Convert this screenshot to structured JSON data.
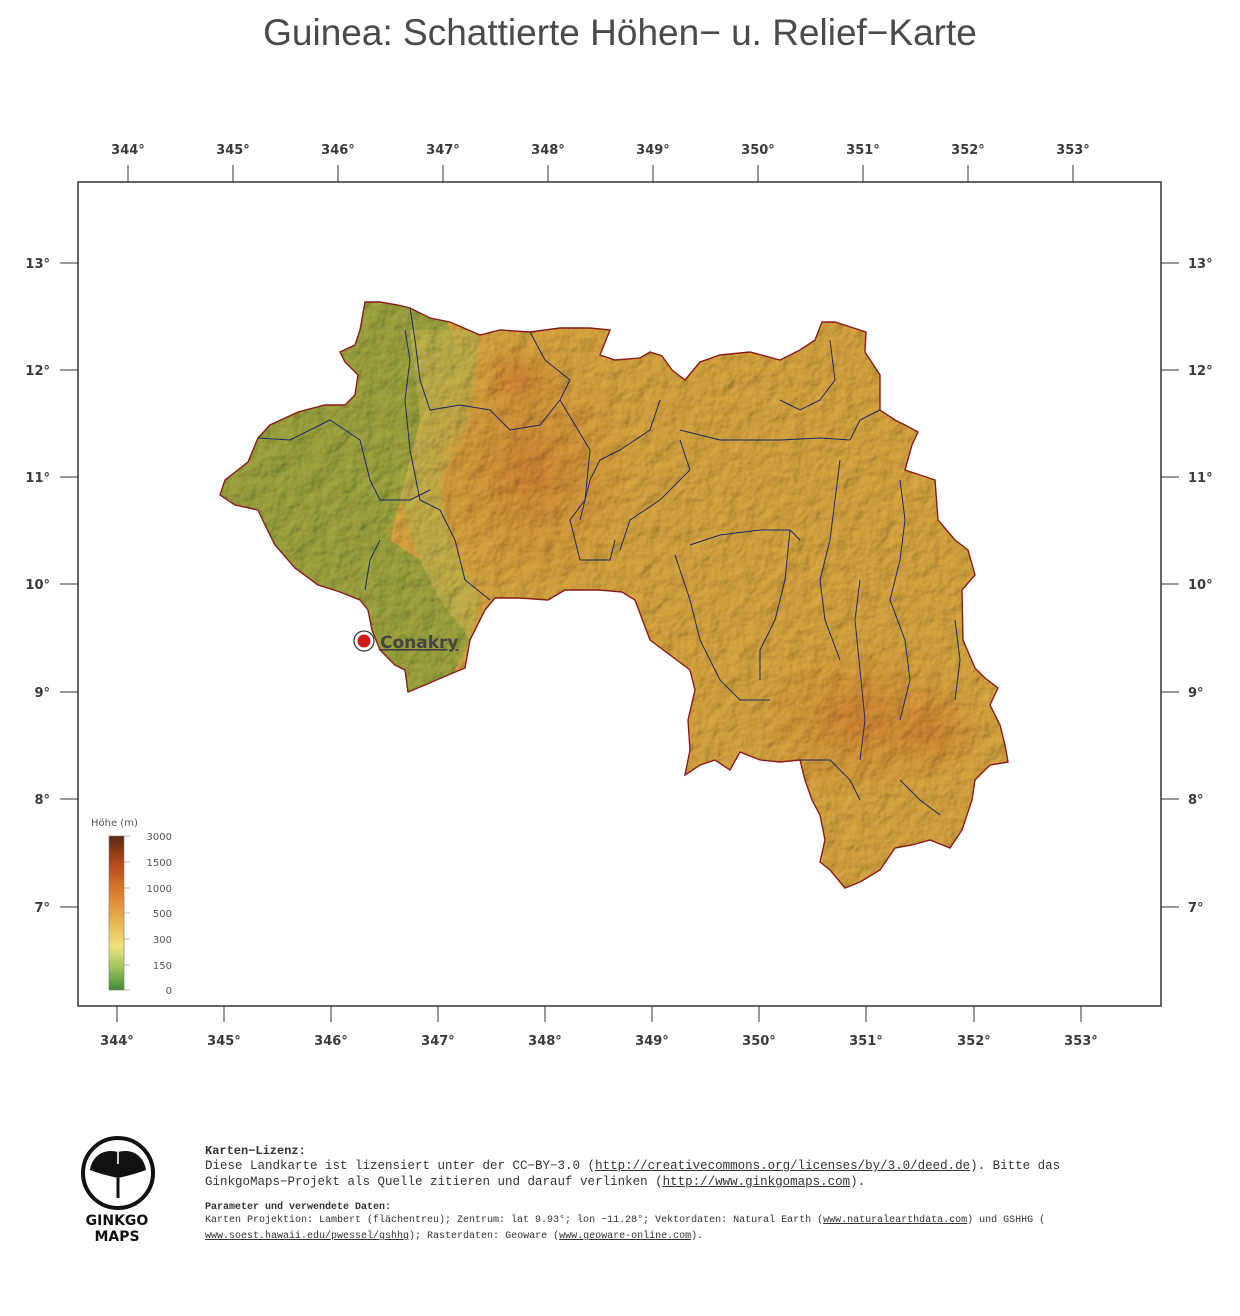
{
  "title": "Guinea: Schattierte Höhen− u. Relief−Karte",
  "axes": {
    "top_lon": [
      "344°",
      "345°",
      "346°",
      "347°",
      "348°",
      "349°",
      "350°",
      "351°",
      "352°",
      "353°"
    ],
    "bottom_lon": [
      "344°",
      "345°",
      "346°",
      "347°",
      "348°",
      "349°",
      "350°",
      "351°",
      "352°",
      "353°"
    ],
    "left_lat": [
      "13°",
      "12°",
      "11°",
      "10°",
      "9°",
      "8°",
      "7°"
    ],
    "right_lat": [
      "13°",
      "12°",
      "11°",
      "10°",
      "9°",
      "8°",
      "7°"
    ]
  },
  "city": {
    "name": "Conakry"
  },
  "legend": {
    "title": "Höhe (m)",
    "labels": [
      "3000",
      "1500",
      "1000",
      "500",
      "300",
      "150",
      "0"
    ],
    "colors": [
      "#5a2a10",
      "#b5481a",
      "#d9792a",
      "#e8b24a",
      "#ece37a",
      "#9cc25a",
      "#3d8b2e"
    ]
  },
  "colors": {
    "lowland": "#5ea53e",
    "midland": "#d8a640",
    "highland": "#c8632a",
    "border": "#8b1a1a",
    "rivers": "#1d2a6a"
  },
  "logo": {
    "line1": "GINKGO",
    "line2": "MAPS"
  },
  "footer": {
    "license_heading": "Karten−Lizenz:",
    "license_line1_a": "Diese Landkarte ist lizensiert unter der CC−BY−3.0 (",
    "license_link1": "http://creativecommons.org/licenses/by/3.0/deed.de",
    "license_line1_b": ").  Bitte das",
    "license_line2_a": "GinkgoMaps−Projekt als Quelle zitieren und darauf verlinken (",
    "license_link2": "http://www.ginkgomaps.com",
    "license_line2_b": ").",
    "params_heading": "Parameter und verwendete Daten:",
    "params_line1_a": "Karten Projektion: Lambert (flächentreu); Zentrum: lat 9.93°; lon −11.28°; Vektordaten: Natural Earth (",
    "params_link1": "www.naturalearthdata.com",
    "params_line1_b": ") und GSHHG (",
    "params_link2": "www.soest.hawaii.edu/pwessel/gshhg",
    "params_line2_a": "); Rasterdaten: Geoware (",
    "params_link3": "www.geoware-online.com",
    "params_line2_b": ")."
  }
}
